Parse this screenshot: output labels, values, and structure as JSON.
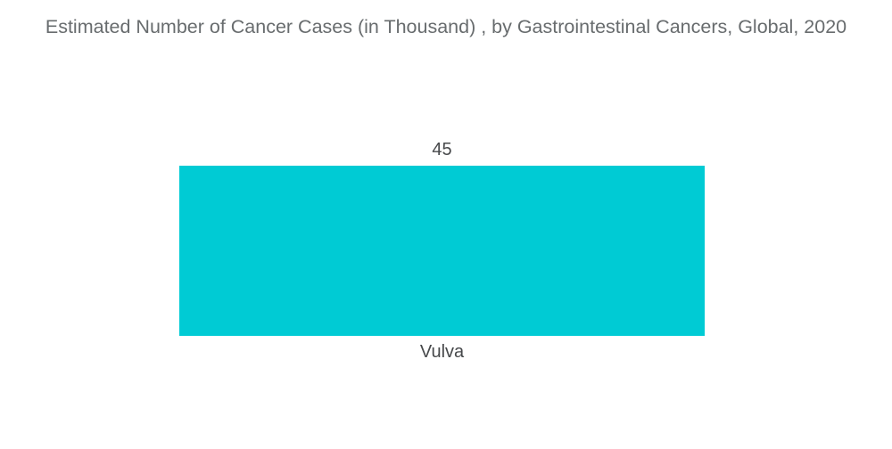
{
  "chart_data": {
    "type": "bar",
    "title": "Estimated Number of Cancer Cases (in Thousand) , by Gastrointestinal Cancers, Global, 2020",
    "categories": [
      "Vulva"
    ],
    "values": [
      45
    ],
    "xlabel": "",
    "ylabel": "",
    "ylim": [
      0,
      60
    ],
    "grid": false,
    "legend": false,
    "bar_color": "#00CBD4",
    "background_color": "#FFFFFF",
    "title_color": "#686C6E",
    "label_color": "#47494B"
  }
}
